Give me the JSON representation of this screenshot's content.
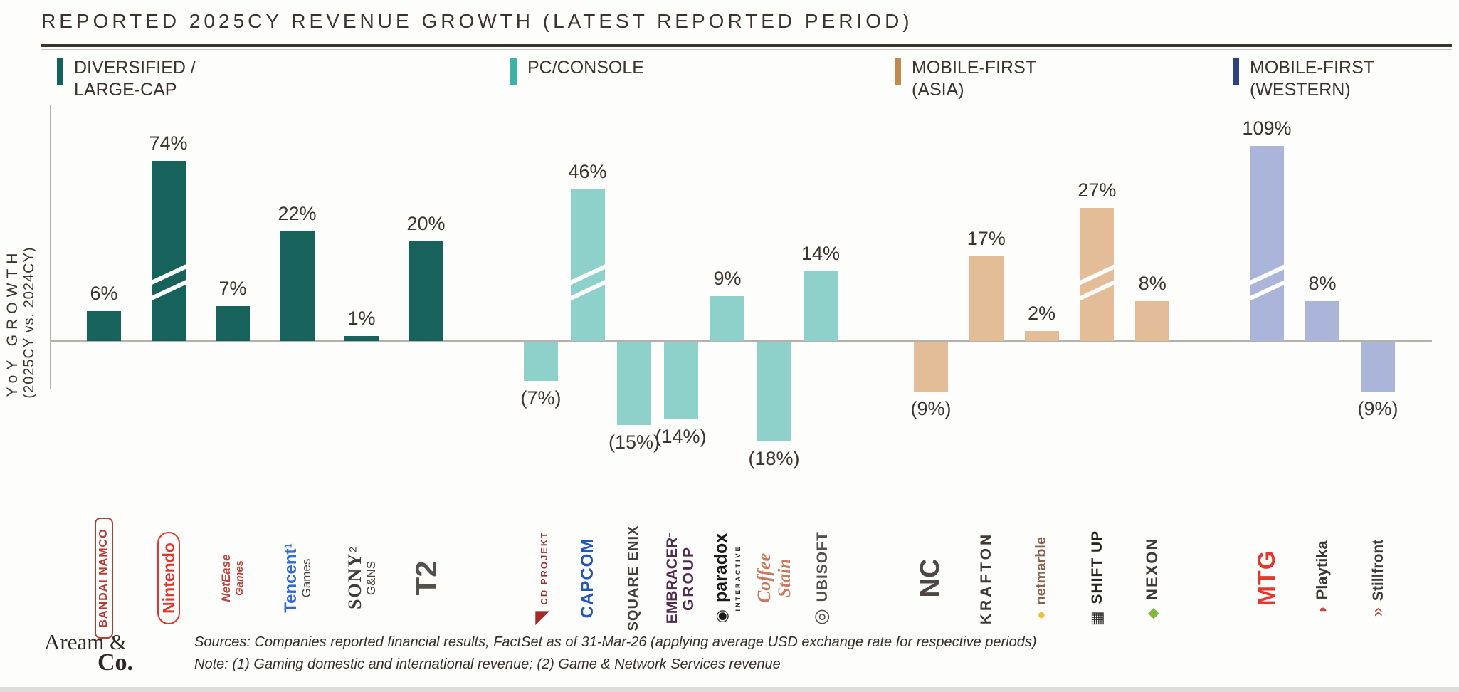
{
  "title": "REPORTED 2025CY REVENUE GROWTH (LATEST REPORTED PERIOD)",
  "chart_data": {
    "type": "bar",
    "title": "REPORTED 2025CY REVENUE GROWTH (LATEST REPORTED PERIOD)",
    "ylabel": "YoY GROWTH (2025CY vs. 2024CY)",
    "ylabel_line1": "YoY GROWTH",
    "ylabel_line2": "(2025CY vs. 2024CY)",
    "unit": "% YoY revenue growth, 2025CY vs 2024CY",
    "legend_position": "top",
    "grid": false,
    "axis_break_note": "Bars marked broken:true are truncated with white diagonal slash marks (axis break)",
    "groups": [
      {
        "name": "DIVERSIFIED / LARGE-CAP",
        "legend_color": "#12635c",
        "bar_color": "#17635c",
        "companies": [
          {
            "name": "Bandai Namco",
            "value": 6,
            "label": "6%",
            "logo": {
              "lines": [
                {
                  "text": "BANDAI NAMCO",
                  "size": 16,
                  "color": "#b93a32",
                  "weight": 700,
                  "ls": 1,
                  "box": true,
                  "box_radius": 8
                }
              ]
            }
          },
          {
            "name": "Nintendo",
            "value": 74,
            "label": "74%",
            "broken": true,
            "display_height": 253,
            "logo": {
              "lines": [
                {
                  "text": "Nintendo",
                  "size": 23,
                  "color": "#e4352c",
                  "weight": 700,
                  "box": true,
                  "box_radius": 999
                }
              ]
            }
          },
          {
            "name": "NetEase Games",
            "value": 7,
            "label": "7%",
            "logo": {
              "lines": [
                {
                  "text": "NetEase",
                  "size": 17,
                  "color": "#b8443c",
                  "weight": 700,
                  "italic": true
                },
                {
                  "text": "Games",
                  "size": 15,
                  "color": "#b8443c",
                  "weight": 700,
                  "italic": true
                }
              ]
            }
          },
          {
            "name": "Tencent Games",
            "value": 22,
            "label": "22%",
            "footnote": "1",
            "logo": {
              "lines": [
                {
                  "text": "Tencent",
                  "size": 24,
                  "color": "#2f6bd0",
                  "weight": 700,
                  "sup": "1"
                },
                {
                  "text": "Games",
                  "size": 17,
                  "color": "#4a4440"
                }
              ]
            }
          },
          {
            "name": "Sony G&NS",
            "value": 1,
            "label": "1%",
            "footnote": "2",
            "logo": {
              "lines": [
                {
                  "text": "SONY",
                  "size": 26,
                  "color": "#3f3a36",
                  "weight": 800,
                  "serif": true,
                  "ls": 2,
                  "sup": "2"
                },
                {
                  "text": "G&NS",
                  "size": 17,
                  "color": "#4a4440"
                }
              ]
            }
          },
          {
            "name": "Take-Two (T2)",
            "value": 20,
            "label": "20%",
            "logo": {
              "lines": [
                {
                  "text": "T2",
                  "size": 42,
                  "color": "#55504b",
                  "weight": 800
                }
              ]
            }
          }
        ]
      },
      {
        "name": "PC/CONSOLE",
        "legend_color": "#3db3a7",
        "bar_color": "#8ed1ca",
        "companies": [
          {
            "name": "CD Projekt",
            "value": -7,
            "label": "(7%)",
            "logo": {
              "lines": [
                {
                  "icon": "◥",
                  "icon_color": "#a32c28",
                  "icon_size": 26,
                  "text": " CD PROJEKT",
                  "size": 13,
                  "color": "#a32c28",
                  "weight": 700,
                  "ls": 2
                }
              ]
            }
          },
          {
            "name": "Capcom",
            "value": 46,
            "label": "46%",
            "broken": true,
            "display_height": 213,
            "logo": {
              "lines": [
                {
                  "text": "CAPCOM",
                  "size": 24,
                  "color": "#2456b5",
                  "weight": 800,
                  "ls": 1
                }
              ]
            }
          },
          {
            "name": "Square Enix",
            "value": -15,
            "label": "(15%)",
            "logo": {
              "lines": [
                {
                  "text": "SQUARE ENIX",
                  "size": 20,
                  "color": "#433e3a",
                  "weight": 600,
                  "ls": 1
                }
              ]
            }
          },
          {
            "name": "Embracer Group",
            "value": -14,
            "label": "(14%)",
            "logo": {
              "lines": [
                {
                  "text": "EMBRACER",
                  "size": 21,
                  "color": "#502b4d",
                  "weight": 800,
                  "sup": "+"
                },
                {
                  "text": "GROUP",
                  "size": 21,
                  "color": "#502b4d",
                  "weight": 800,
                  "ls": 3
                }
              ]
            }
          },
          {
            "name": "Paradox Interactive",
            "value": 9,
            "label": "9%",
            "logo": {
              "lines": [
                {
                  "icon": "◉",
                  "icon_color": "#1c1a18",
                  "icon_size": 22,
                  "text": " paradox",
                  "size": 25,
                  "color": "#1c1a18",
                  "weight": 800
                },
                {
                  "text": "INTERACTIVE",
                  "size": 9,
                  "color": "#1c1a18",
                  "weight": 600,
                  "ls": 3
                }
              ]
            }
          },
          {
            "name": "Coffee Stain",
            "value": -18,
            "label": "(18%)",
            "logo": {
              "lines": [
                {
                  "text": "Coffee",
                  "size": 26,
                  "color": "#c97a5e",
                  "weight": 700,
                  "italic": true,
                  "serif": true
                },
                {
                  "text": "Stain",
                  "size": 25,
                  "color": "#c97a5e",
                  "weight": 700,
                  "italic": true,
                  "serif": true
                }
              ]
            }
          },
          {
            "name": "Ubisoft",
            "value": 14,
            "label": "14%",
            "logo": {
              "lines": [
                {
                  "icon": "◎",
                  "icon_color": "#55504b",
                  "icon_size": 26,
                  "text": " UBISOFT",
                  "size": 21,
                  "color": "#55504b",
                  "weight": 700,
                  "ls": 1
                }
              ]
            }
          }
        ]
      },
      {
        "name": "MOBILE-FIRST (ASIA)",
        "legend_color": "#bf8a4d",
        "bar_color": "#e3bc98",
        "companies": [
          {
            "name": "NCSoft",
            "value": -9,
            "label": "(9%)",
            "logo": {
              "lines": [
                {
                  "text": "NC",
                  "size": 38,
                  "color": "#4d4844",
                  "weight": 800
                }
              ]
            }
          },
          {
            "name": "Krafton",
            "value": 17,
            "label": "17%",
            "logo": {
              "lines": [
                {
                  "text": "KRAFTON",
                  "size": 21,
                  "color": "#3f3a36",
                  "weight": 800,
                  "ls": 4
                }
              ]
            }
          },
          {
            "name": "Netmarble",
            "value": 2,
            "label": "2%",
            "logo": {
              "lines": [
                {
                  "icon": "●",
                  "icon_color": "#e9c243",
                  "icon_size": 20,
                  "text": " netmarble",
                  "size": 20,
                  "color": "#8a6450",
                  "weight": 700
                }
              ]
            }
          },
          {
            "name": "Shift Up",
            "value": 27,
            "label": "27%",
            "broken": true,
            "display_height": 187,
            "logo": {
              "lines": [
                {
                  "icon": "▦",
                  "icon_color": "#26221f",
                  "icon_size": 22,
                  "text": " SHIFT UP",
                  "size": 21,
                  "color": "#26221f",
                  "weight": 700,
                  "ls": 1
                }
              ]
            }
          },
          {
            "name": "Nexon",
            "value": 8,
            "label": "8%",
            "logo": {
              "lines": [
                {
                  "icon": "◆",
                  "icon_color": "#84b53e",
                  "icon_size": 20,
                  "text": " NEXON",
                  "size": 22,
                  "color": "#3f3a36",
                  "weight": 800,
                  "ls": 2
                }
              ]
            }
          }
        ]
      },
      {
        "name": "MOBILE-FIRST (WESTERN)",
        "legend_color": "#2e4180",
        "bar_color": "#abb5da",
        "companies": [
          {
            "name": "MTG",
            "value": 109,
            "label": "109%",
            "broken": true,
            "display_height": 274,
            "logo": {
              "lines": [
                {
                  "text": "MTG",
                  "size": 34,
                  "color": "#e8352c",
                  "weight": 800,
                  "ls": 1
                }
              ]
            }
          },
          {
            "name": "Playtika",
            "value": 8,
            "label": "8%",
            "logo": {
              "lines": [
                {
                  "icon": "◑",
                  "icon_color": "#c24b47",
                  "icon_size": 22,
                  "text": " Playtika",
                  "size": 22,
                  "color": "#3a3531",
                  "weight": 700
                }
              ]
            }
          },
          {
            "name": "Stillfront",
            "value": -9,
            "label": "(9%)",
            "logo": {
              "lines": [
                {
                  "icon": "»",
                  "icon_color": "#b5433d",
                  "icon_size": 24,
                  "text": " Stillfront",
                  "size": 21,
                  "color": "#3f3a36",
                  "weight": 700
                }
              ]
            }
          }
        ]
      }
    ]
  },
  "footer": {
    "brand_line1": "Aream &",
    "brand_line2": "Co.",
    "source_line": "Sources: Companies reported financial results, FactSet as of 31-Mar-26 (applying average USD exchange rate for respective periods)",
    "note_line": "Note: (1) Gaming domestic and international revenue; (2) Game & Network Services revenue"
  }
}
